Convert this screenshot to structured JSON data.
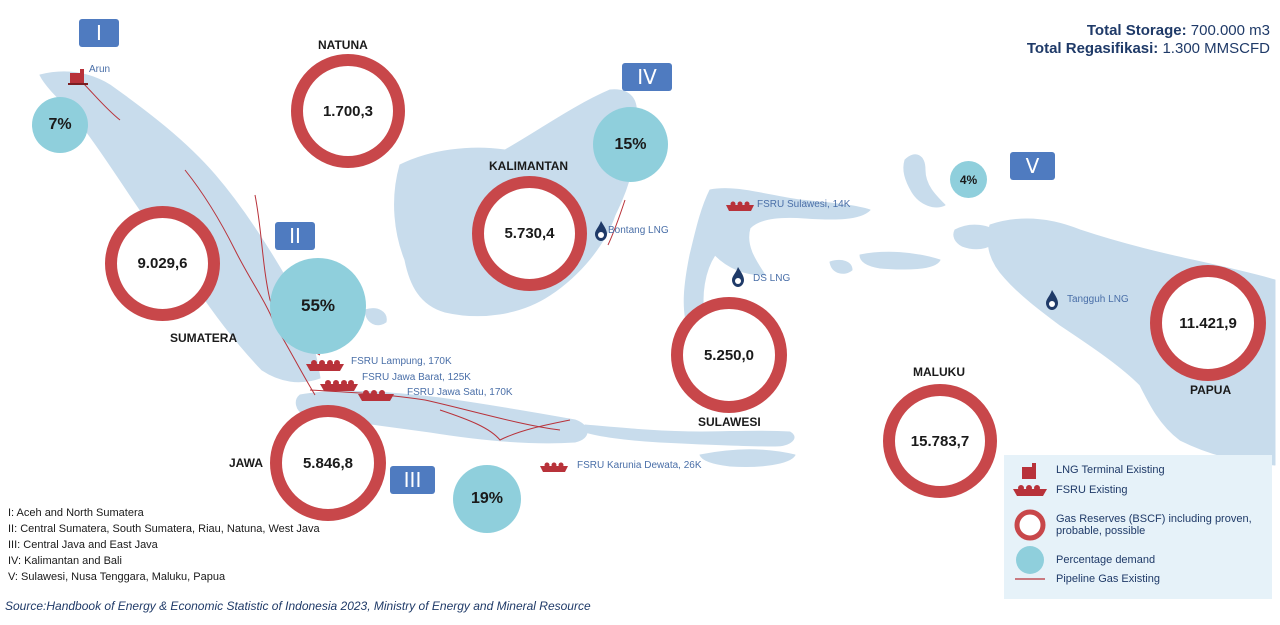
{
  "totals": {
    "storage_label": "Total Storage:",
    "storage_value": "700.000 m3",
    "regas_label": "Total Regasifikasi:",
    "regas_value": "1.300 MMSCFD"
  },
  "region_tags": {
    "i": "I",
    "ii": "II",
    "iii": "III",
    "iv": "IV",
    "v": "V"
  },
  "areas": {
    "natuna": "NATUNA",
    "kalimantan": "KALIMANTAN",
    "sumatera": "SUMATERA",
    "jawa": "JAWA",
    "sulawesi": "SULAWESI",
    "maluku": "MALUKU",
    "papua": "PAPUA"
  },
  "reserves_bscf": {
    "natuna": "1.700,3",
    "sumatera": "9.029,6",
    "kalimantan": "5.730,4",
    "sulawesi": "5.250,0",
    "jawa": "5.846,8",
    "maluku": "15.783,7",
    "papua": "11.421,9"
  },
  "demand_percent": {
    "i": "7%",
    "ii": "55%",
    "iii": "19%",
    "iv": "15%",
    "v": "4%"
  },
  "facilities": {
    "arun": "Arun",
    "bontang": "Bontang LNG",
    "ds_lng": "DS LNG",
    "tangguh": "Tangguh LNG",
    "fsru_sulawesi": "FSRU Sulawesi, 14K",
    "fsru_lampung": "FSRU Lampung, 170K",
    "fsru_jawa_barat": "FSRU Jawa Barat, 125K",
    "fsru_jawa_satu": "FSRU Jawa Satu, 170K",
    "fsru_karunia": "FSRU Karunia Dewata, 26K"
  },
  "region_notes": [
    "I: Aceh and North Sumatera",
    "II: Central Sumatera, South Sumatera, Riau, Natuna, West Java",
    "III: Central Java and East Java",
    "IV: Kalimantan and Bali",
    "V: Sulawesi, Nusa Tenggara, Maluku, Papua"
  ],
  "legend": {
    "lng_terminal": "LNG Terminal Existing",
    "fsru": "FSRU Existing",
    "reserves_line1": "Gas Reserves (BSCF) including proven,",
    "reserves_line2": "probable, possible",
    "demand": "Percentage demand",
    "pipeline": "Pipeline Gas Existing"
  },
  "source": "Source:Handbook of Energy & Economic Statistic of Indonesia 2023, Ministry of Energy and Mineral Resource",
  "colors": {
    "land": "#c8dcec",
    "reserve_ring": "#c8474a",
    "demand_fill": "#8fcfdc",
    "tag_fill": "#4f7bc0",
    "pipeline": "#b8323a",
    "legend_bg": "#e6f2f9",
    "title_text": "#1f3a68"
  }
}
